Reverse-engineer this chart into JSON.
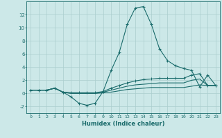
{
  "xlabel": "Humidex (Indice chaleur)",
  "x": [
    0,
    1,
    2,
    3,
    4,
    5,
    6,
    7,
    8,
    9,
    10,
    11,
    12,
    13,
    14,
    15,
    16,
    17,
    18,
    19,
    20,
    21,
    22,
    23
  ],
  "line1": [
    0.5,
    0.5,
    0.5,
    0.8,
    0.2,
    -0.5,
    -1.5,
    -1.8,
    -1.5,
    0.3,
    3.5,
    6.2,
    10.5,
    13.0,
    13.2,
    10.5,
    6.8,
    5.0,
    4.2,
    3.8,
    3.5,
    1.0,
    2.8,
    1.2
  ],
  "line2": [
    0.5,
    0.5,
    0.5,
    0.8,
    0.2,
    0.1,
    0.1,
    0.1,
    0.1,
    0.3,
    0.8,
    1.2,
    1.6,
    1.9,
    2.1,
    2.2,
    2.3,
    2.3,
    2.3,
    2.3,
    2.8,
    3.0,
    1.2,
    1.2
  ],
  "line3": [
    0.5,
    0.5,
    0.5,
    0.8,
    0.2,
    0.05,
    0.05,
    0.05,
    0.05,
    0.2,
    0.5,
    0.8,
    1.1,
    1.3,
    1.4,
    1.5,
    1.6,
    1.6,
    1.6,
    1.6,
    2.0,
    2.2,
    1.2,
    1.2
  ],
  "line4": [
    0.5,
    0.5,
    0.5,
    0.8,
    0.2,
    0.0,
    0.0,
    0.0,
    0.0,
    0.1,
    0.2,
    0.4,
    0.6,
    0.7,
    0.8,
    0.9,
    0.9,
    0.9,
    0.9,
    0.9,
    1.1,
    1.3,
    1.2,
    1.2
  ],
  "line_color": "#1a6b6b",
  "bg_color": "#cce8e8",
  "grid_color": "#aacece",
  "ylim": [
    -3,
    14
  ],
  "yticks": [
    -2,
    0,
    2,
    4,
    6,
    8,
    10,
    12
  ],
  "xlim": [
    -0.5,
    23.5
  ],
  "figw": 3.2,
  "figh": 2.0,
  "dpi": 100
}
